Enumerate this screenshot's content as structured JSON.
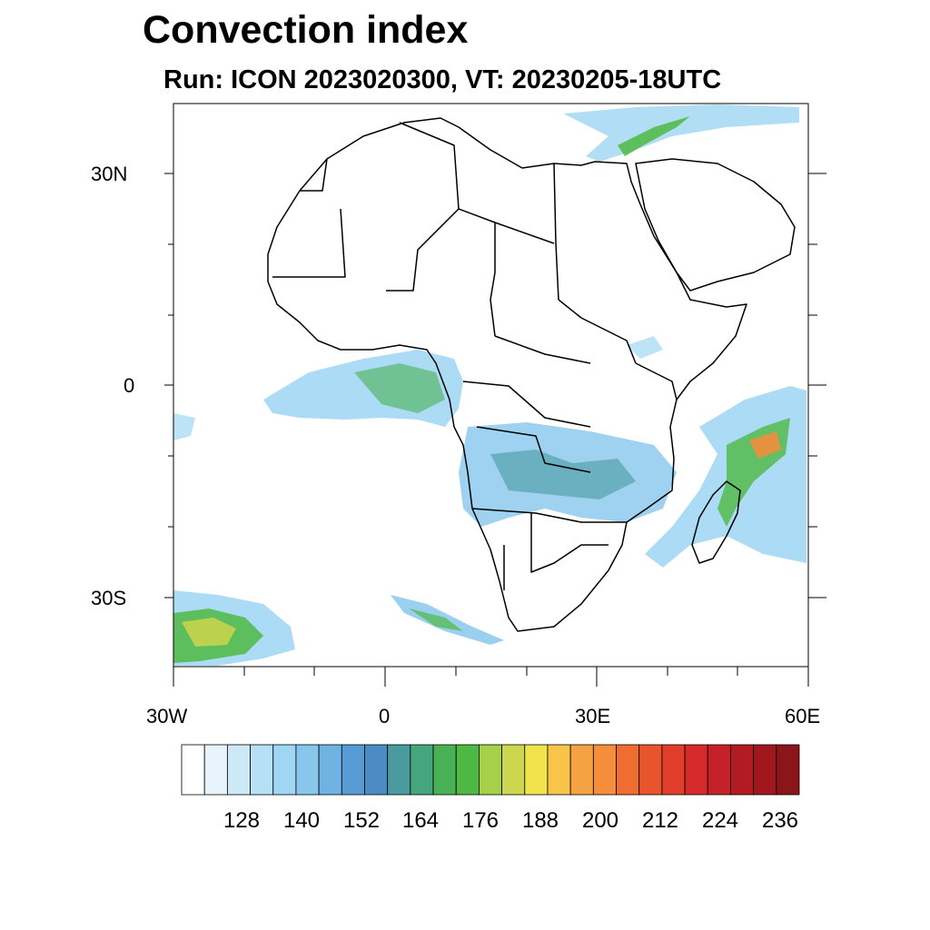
{
  "title": "Convection index",
  "subtitle": "Run: ICON 2023020300,  VT: 20230205-18UTC",
  "axes": {
    "lat_labels": [
      "30N",
      "0",
      "30S"
    ],
    "lon_labels": [
      "30W",
      "0",
      "30E",
      "60E"
    ]
  },
  "colorbar": {
    "colors": [
      "#ffffff",
      "#e8f4fb",
      "#cde9f7",
      "#b6e0f5",
      "#9ed6f3",
      "#87c7ec",
      "#6fb3e2",
      "#569bd4",
      "#4a8cc3",
      "#4a9aa0",
      "#45a57c",
      "#48b055",
      "#4fb842",
      "#a6cf4a",
      "#cdd64c",
      "#f0e44a",
      "#f8c44a",
      "#f5a242",
      "#f48d3c",
      "#ef6d31",
      "#e8552d",
      "#e03d2a",
      "#d42a2b",
      "#c42128",
      "#b31b23",
      "#a0181e",
      "#8b1619"
    ],
    "labels": [
      "128",
      "140",
      "152",
      "164",
      "176",
      "188",
      "200",
      "212",
      "224",
      "236"
    ]
  }
}
